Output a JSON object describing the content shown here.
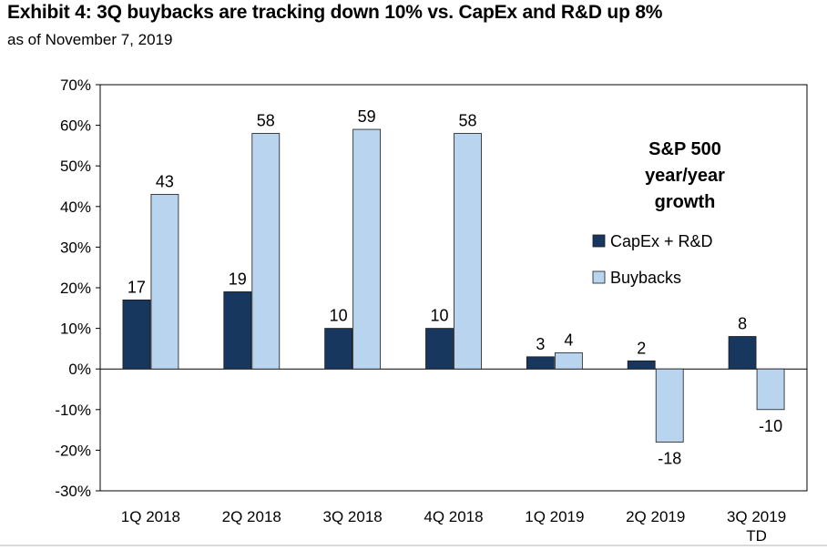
{
  "header": {
    "title": "Exhibit 4: 3Q buybacks are tracking down 10% vs. CapEx and R&D up 8%",
    "subtitle": "as of November 7, 2019"
  },
  "chart_data": {
    "type": "bar",
    "title": "Exhibit 4: 3Q buybacks are tracking down 10% vs. CapEx and R&D up 8%",
    "subtitle": "as of November 7, 2019",
    "annotation": [
      "S&P 500",
      "year/year",
      "growth"
    ],
    "categories": [
      [
        "1Q 2018"
      ],
      [
        "2Q 2018"
      ],
      [
        "3Q 2018"
      ],
      [
        "4Q 2018"
      ],
      [
        "1Q 2019"
      ],
      [
        "2Q 2019"
      ],
      [
        "3Q 2019",
        "TD"
      ]
    ],
    "series": [
      {
        "name": "CapEx + R&D",
        "color": "#17375e",
        "values": [
          17,
          19,
          10,
          10,
          3,
          2,
          8
        ]
      },
      {
        "name": "Buybacks",
        "color": "#b8d4ee",
        "values": [
          43,
          58,
          59,
          58,
          4,
          -18,
          -10
        ]
      }
    ],
    "ylim": [
      -30,
      70
    ],
    "yticks": [
      "-30%",
      "-20%",
      "-10%",
      "0%",
      "10%",
      "20%",
      "30%",
      "40%",
      "50%",
      "60%",
      "70%"
    ],
    "grid": false,
    "legend_position": "right"
  }
}
